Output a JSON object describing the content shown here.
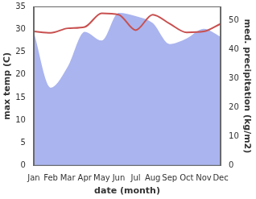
{
  "chart_data": {
    "type": "line",
    "xlabel": "date (month)",
    "ylabel": "max temp (C)",
    "y2label": "med. precipitation (kg/m2)",
    "categories": [
      "Jan",
      "Feb",
      "Mar",
      "Apr",
      "May",
      "Jun",
      "Jul",
      "Aug",
      "Sep",
      "Oct",
      "Nov",
      "Dec"
    ],
    "series": [
      {
        "type": "area",
        "axis": "y2",
        "color": "#aab4ee",
        "values": [
          45.9,
          26.8,
          34.0,
          46.0,
          43.0,
          52.5,
          51.4,
          49.0,
          41.8,
          43.7,
          47.0,
          44.3
        ]
      },
      {
        "type": "line",
        "color": "#c8504f",
        "values": [
          29.5,
          29.2,
          30.2,
          30.5,
          33.5,
          33.2,
          29.8,
          33.2,
          31.2,
          29.3,
          29.5,
          31.2
        ]
      }
    ],
    "ylim": [
      0,
      35
    ],
    "yticks": [
      0,
      5,
      10,
      15,
      20,
      25,
      30,
      35
    ],
    "y2lim": [
      0,
      54.7
    ],
    "y2ticks": [
      0,
      10,
      20,
      30,
      40,
      50
    ],
    "grid": false
  }
}
